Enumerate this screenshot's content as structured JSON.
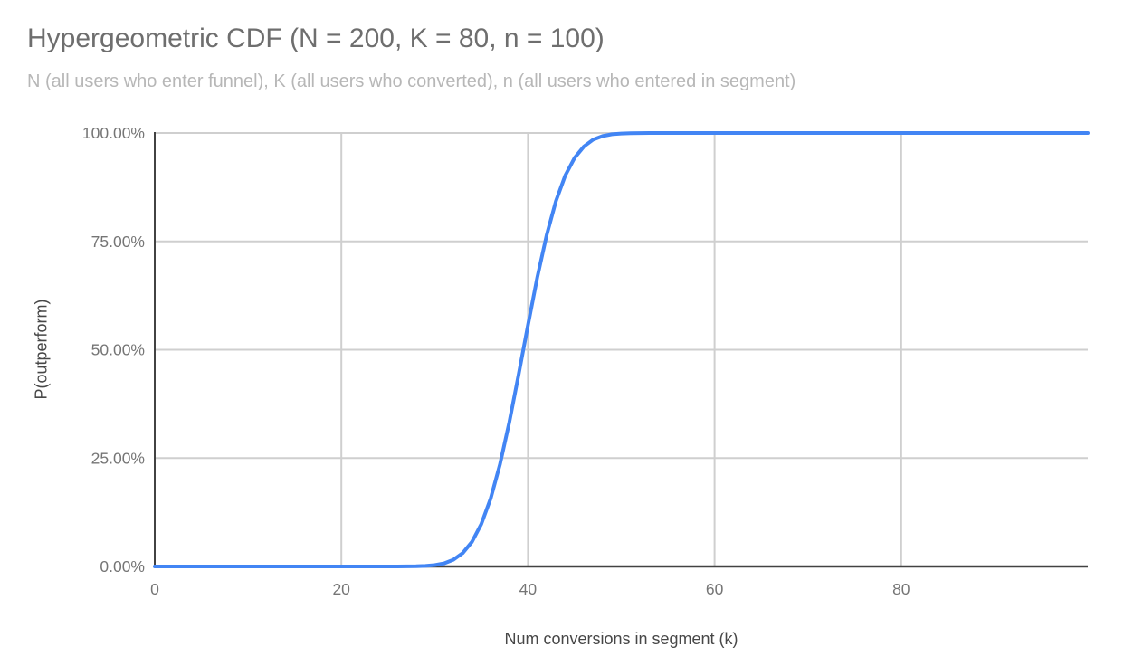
{
  "chart_data": {
    "type": "line",
    "title": "Hypergeometric CDF (N = 200, K = 80, n = 100)",
    "subtitle": "N (all users who enter funnel), K (all users who converted), n (all users who entered in segment)",
    "xlabel": "Num conversions in segment (k)",
    "ylabel": "P(outperform)",
    "xlim": [
      0,
      100
    ],
    "ylim": [
      0,
      1
    ],
    "x_tick_values": [
      0,
      20,
      40,
      60,
      80
    ],
    "x_tick_labels": [
      "0",
      "20",
      "40",
      "60",
      "80"
    ],
    "y_tick_values": [
      0,
      0.25,
      0.5,
      0.75,
      1
    ],
    "y_tick_labels": [
      "0.00%",
      "25.00%",
      "50.00%",
      "75.00%",
      "100.00%"
    ],
    "grid": true,
    "legend": "none",
    "colors": {
      "grid": "#cfcfcf",
      "axis": "#424242",
      "title": "#6e6e6e",
      "subtitle": "#b7b7b7",
      "tick": "#757575"
    },
    "series": [
      {
        "name": "P(outperform)",
        "color": "#4285f4",
        "x": [
          0,
          5,
          10,
          15,
          20,
          22,
          24,
          25,
          26,
          27,
          28,
          29,
          30,
          31,
          32,
          33,
          34,
          35,
          36,
          37,
          38,
          39,
          40,
          41,
          42,
          43,
          44,
          45,
          46,
          47,
          48,
          49,
          50,
          51,
          52,
          53,
          54,
          56,
          58,
          60,
          65,
          70,
          75,
          80,
          85,
          90,
          95,
          100
        ],
        "y": [
          0,
          0,
          0,
          0,
          0,
          1e-06,
          4e-06,
          1.5e-05,
          5e-05,
          0.00016,
          0.00047,
          0.0013,
          0.0032,
          0.0072,
          0.0155,
          0.0307,
          0.0568,
          0.0977,
          0.157,
          0.236,
          0.333,
          0.443,
          0.557,
          0.667,
          0.764,
          0.843,
          0.902,
          0.943,
          0.969,
          0.985,
          0.993,
          0.997,
          0.9987,
          0.9995,
          0.9998,
          0.99995,
          1,
          1,
          1,
          1,
          1,
          1,
          1,
          1,
          1,
          1,
          1,
          1
        ]
      }
    ]
  }
}
